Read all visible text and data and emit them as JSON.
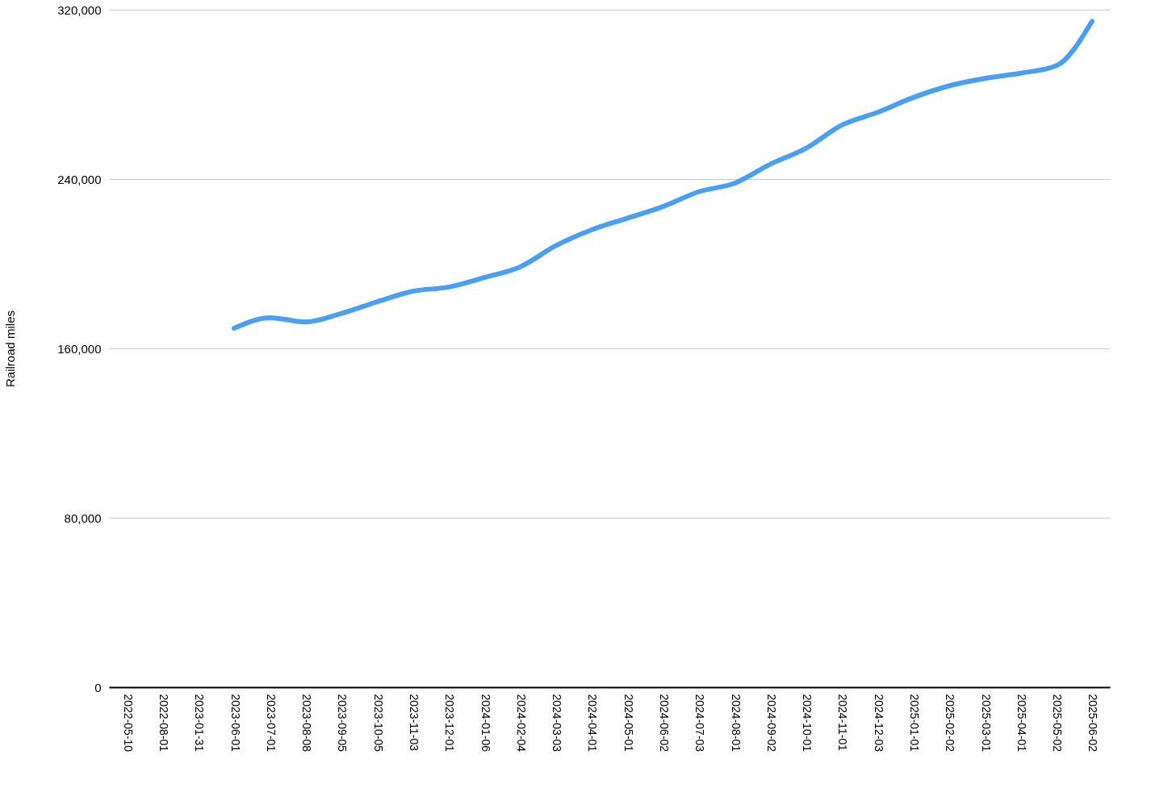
{
  "chart_data": {
    "type": "line",
    "ylabel": "Railroad miles",
    "categories": [
      "2022-05-10",
      "2022-08-01",
      "2023-01-31",
      "2023-06-01",
      "2023-07-01",
      "2023-08-08",
      "2023-09-05",
      "2023-10-05",
      "2023-11-03",
      "2023-12-01",
      "2024-01-06",
      "2024-02-04",
      "2024-03-03",
      "2024-04-01",
      "2024-05-01",
      "2024-06-02",
      "2024-07-03",
      "2024-08-01",
      "2024-09-02",
      "2024-10-01",
      "2024-11-01",
      "2024-12-03",
      "2025-01-01",
      "2025-02-02",
      "2025-03-01",
      "2025-04-01",
      "2025-05-02",
      "2025-06-02"
    ],
    "series": [
      {
        "color": "#4a9ff0",
        "values": [
          null,
          null,
          null,
          169500,
          174500,
          172500,
          176500,
          182000,
          187000,
          189000,
          193500,
          198500,
          208500,
          216000,
          221500,
          227000,
          234000,
          238000,
          247000,
          254500,
          265500,
          271500,
          278500,
          284000,
          287500,
          290000,
          293500,
          314500
        ]
      }
    ],
    "ylim": [
      0,
      320000
    ],
    "yticks": [
      0,
      {
        "value": 80000,
        "label": "80,000"
      },
      {
        "value": 160000,
        "label": "160,000"
      },
      {
        "value": 240000,
        "label": "240,000"
      },
      {
        "value": 320000,
        "label": "320,000"
      }
    ],
    "grid": "y",
    "marker": "none",
    "line_style": "solid"
  }
}
